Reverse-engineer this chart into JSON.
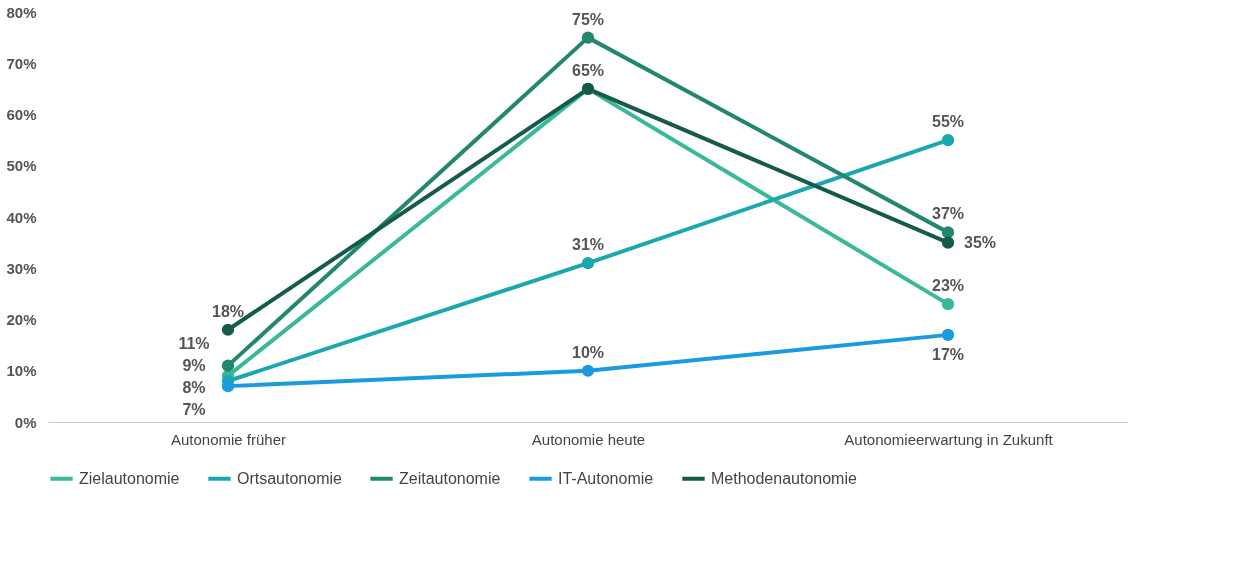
{
  "chart_data": {
    "type": "line",
    "categories": [
      "Autonomie früher",
      "Autonomie heute",
      "Autonomieerwartung in Zukunft"
    ],
    "series": [
      {
        "name": "Zielautonomie",
        "color": "#3bb89a",
        "values": [
          9,
          65,
          23
        ],
        "value_labels": [
          "9%",
          null,
          "23%"
        ]
      },
      {
        "name": "Ortsautonomie",
        "color": "#1aa8b0",
        "values": [
          8,
          31,
          55
        ],
        "value_labels": [
          "8%",
          "31%",
          "55%"
        ]
      },
      {
        "name": "Zeitautonomie",
        "color": "#23876f",
        "values": [
          11,
          75,
          37
        ],
        "value_labels": [
          "11%",
          "75%",
          "37%"
        ]
      },
      {
        "name": "IT-Autonomie",
        "color": "#1a9be0",
        "values": [
          7,
          10,
          17
        ],
        "value_labels": [
          "7%",
          "10%",
          "17%"
        ]
      },
      {
        "name": "Methodenautonomie",
        "color": "#155a4a",
        "values": [
          18,
          65,
          35
        ],
        "value_labels": [
          "18%",
          "65%",
          "35%"
        ]
      }
    ],
    "ylim": [
      0,
      80
    ],
    "yticks": [
      {
        "value": 0,
        "label": "0%"
      },
      {
        "value": 10,
        "label": "10%"
      },
      {
        "value": 20,
        "label": "20%"
      },
      {
        "value": 30,
        "label": "30%"
      },
      {
        "value": 40,
        "label": "40%"
      },
      {
        "value": 50,
        "label": "50%"
      },
      {
        "value": 60,
        "label": "60%"
      },
      {
        "value": 70,
        "label": "70%"
      },
      {
        "value": 80,
        "label": "80%"
      }
    ],
    "grid": false,
    "legend": "bottom",
    "marker": "circle",
    "line_style": "solid"
  }
}
